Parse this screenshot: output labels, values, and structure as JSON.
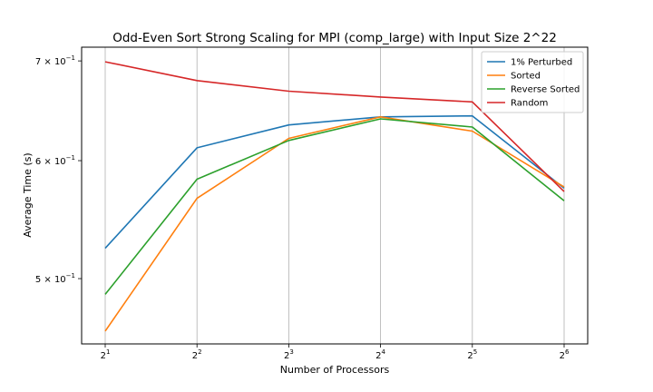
{
  "chart_data": {
    "type": "line",
    "title": "Odd-Even Sort Strong Scaling for MPI (comp_large) with Input Size 2^22",
    "xlabel": "Number of Processors",
    "ylabel": "Average Time (s)",
    "x": [
      2,
      4,
      8,
      16,
      32,
      64
    ],
    "x_tick_labels": [
      {
        "base": "2",
        "exp": "1"
      },
      {
        "base": "2",
        "exp": "2"
      },
      {
        "base": "2",
        "exp": "3"
      },
      {
        "base": "2",
        "exp": "4"
      },
      {
        "base": "2",
        "exp": "5"
      },
      {
        "base": "2",
        "exp": "6"
      }
    ],
    "x_scale": "log2",
    "y_scale": "log",
    "ylim": [
      0.452,
      0.715
    ],
    "y_ticks": [
      {
        "value": 0.5,
        "mantissa": "5",
        "base": "10",
        "exp": "−1"
      },
      {
        "value": 0.6,
        "mantissa": "6",
        "base": "10",
        "exp": "−1"
      },
      {
        "value": 0.7,
        "mantissa": "7",
        "base": "10",
        "exp": "−1"
      }
    ],
    "grid": "x-vertical",
    "legend_position": "top-right",
    "series": [
      {
        "name": "1% Perturbed",
        "color": "#1f77b4",
        "values": [
          0.524,
          0.612,
          0.634,
          0.642,
          0.643,
          0.575
        ]
      },
      {
        "name": "Sorted",
        "color": "#ff7f0e",
        "values": [
          0.461,
          0.566,
          0.621,
          0.642,
          0.628,
          0.576
        ]
      },
      {
        "name": "Reverse Sorted",
        "color": "#2ca02c",
        "values": [
          0.488,
          0.583,
          0.619,
          0.64,
          0.632,
          0.564
        ]
      },
      {
        "name": "Random",
        "color": "#d62728",
        "values": [
          0.699,
          0.679,
          0.668,
          0.662,
          0.657,
          0.572
        ]
      }
    ]
  }
}
